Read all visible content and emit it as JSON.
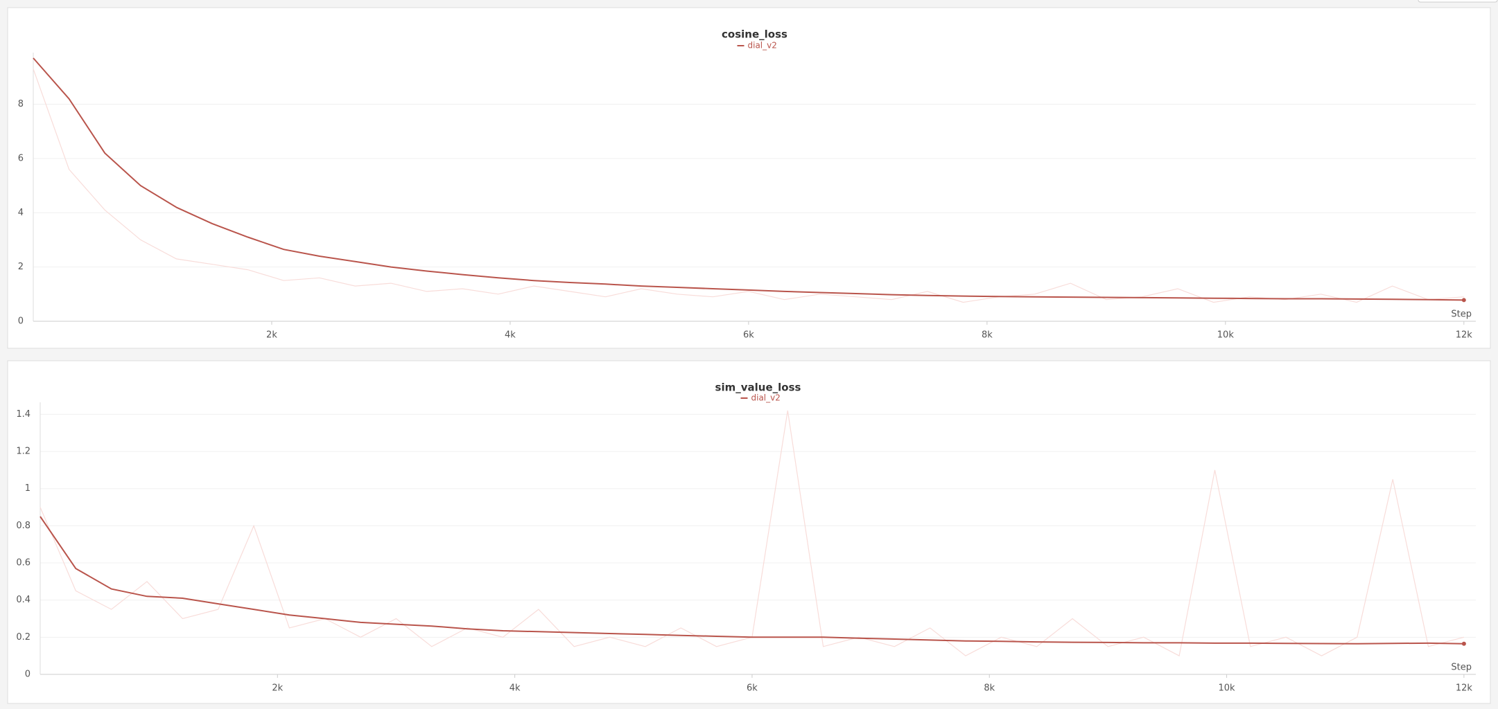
{
  "chart_data": [
    {
      "type": "line",
      "title": "cosine_loss",
      "x_label": "Step",
      "x": [
        0,
        300,
        600,
        900,
        1200,
        1500,
        1800,
        2100,
        2400,
        2700,
        3000,
        3300,
        3600,
        3900,
        4200,
        4500,
        4800,
        5100,
        5400,
        5700,
        6000,
        6300,
        6600,
        6900,
        7200,
        7500,
        7800,
        8100,
        8400,
        8700,
        9000,
        9300,
        9600,
        9900,
        10200,
        10500,
        10800,
        11100,
        11400,
        11700,
        12000
      ],
      "series": [
        {
          "color": "#f8dcd9",
          "values": [
            9.3,
            5.6,
            4.1,
            3.0,
            2.3,
            2.1,
            1.9,
            1.5,
            1.6,
            1.3,
            1.4,
            1.1,
            1.2,
            1.0,
            1.3,
            1.1,
            0.9,
            1.2,
            1.0,
            0.9,
            1.1,
            0.8,
            1.0,
            0.9,
            0.8,
            1.1,
            0.7,
            0.9,
            1.0,
            1.4,
            0.8,
            0.9,
            1.2,
            0.7,
            0.9,
            0.8,
            1.0,
            0.7,
            1.3,
            0.8,
            0.9
          ]
        },
        {
          "name": "dial_v2",
          "color": "#b9544b",
          "values": [
            9.7,
            8.2,
            6.2,
            5.0,
            4.2,
            3.6,
            3.1,
            2.65,
            2.4,
            2.2,
            2.0,
            1.85,
            1.72,
            1.6,
            1.5,
            1.43,
            1.37,
            1.3,
            1.25,
            1.2,
            1.15,
            1.1,
            1.06,
            1.02,
            0.98,
            0.95,
            0.93,
            0.91,
            0.9,
            0.89,
            0.88,
            0.87,
            0.86,
            0.85,
            0.84,
            0.83,
            0.83,
            0.82,
            0.81,
            0.8,
            0.78
          ]
        }
      ],
      "xlim": [
        0,
        12100
      ],
      "xticks": [
        {
          "value": 2000,
          "label": "2k"
        },
        {
          "value": 4000,
          "label": "4k"
        },
        {
          "value": 6000,
          "label": "6k"
        },
        {
          "value": 8000,
          "label": "8k"
        },
        {
          "value": 10000,
          "label": "10k"
        },
        {
          "value": 12000,
          "label": "12k"
        }
      ],
      "ylim": [
        0,
        9.8
      ],
      "yticks": [
        0,
        2,
        4,
        6,
        8
      ],
      "grid": true
    },
    {
      "type": "line",
      "title": "sim_value_loss",
      "x_label": "Step",
      "x": [
        0,
        300,
        600,
        900,
        1200,
        1500,
        1800,
        2100,
        2400,
        2700,
        3000,
        3300,
        3600,
        3900,
        4200,
        4500,
        4800,
        5100,
        5400,
        5700,
        6000,
        6300,
        6600,
        6900,
        7200,
        7500,
        7800,
        8100,
        8400,
        8700,
        9000,
        9300,
        9600,
        9900,
        10200,
        10500,
        10800,
        11100,
        11400,
        11700,
        12000
      ],
      "series": [
        {
          "color": "#f8dcd9",
          "values": [
            0.9,
            0.45,
            0.35,
            0.5,
            0.3,
            0.35,
            0.8,
            0.25,
            0.3,
            0.2,
            0.3,
            0.15,
            0.25,
            0.2,
            0.35,
            0.15,
            0.2,
            0.15,
            0.25,
            0.15,
            0.2,
            1.42,
            0.15,
            0.2,
            0.15,
            0.25,
            0.1,
            0.2,
            0.15,
            0.3,
            0.15,
            0.2,
            0.1,
            1.1,
            0.15,
            0.2,
            0.1,
            0.2,
            1.05,
            0.15,
            0.2
          ]
        },
        {
          "name": "dial_v2",
          "color": "#b9544b",
          "values": [
            0.85,
            0.57,
            0.46,
            0.42,
            0.41,
            0.38,
            0.35,
            0.32,
            0.3,
            0.28,
            0.27,
            0.26,
            0.245,
            0.235,
            0.23,
            0.225,
            0.22,
            0.215,
            0.21,
            0.205,
            0.2,
            0.2,
            0.2,
            0.195,
            0.19,
            0.185,
            0.18,
            0.178,
            0.175,
            0.173,
            0.172,
            0.17,
            0.17,
            0.168,
            0.168,
            0.167,
            0.166,
            0.165,
            0.167,
            0.168,
            0.165
          ]
        }
      ],
      "xlim": [
        0,
        12100
      ],
      "xticks": [
        {
          "value": 2000,
          "label": "2k"
        },
        {
          "value": 4000,
          "label": "4k"
        },
        {
          "value": 6000,
          "label": "6k"
        },
        {
          "value": 8000,
          "label": "8k"
        },
        {
          "value": 10000,
          "label": "10k"
        },
        {
          "value": 12000,
          "label": "12k"
        }
      ],
      "ylim": [
        0,
        1.45
      ],
      "yticks": [
        0,
        0.2,
        0.4,
        0.6,
        0.8,
        1,
        1.2,
        1.4
      ],
      "grid": true
    }
  ]
}
